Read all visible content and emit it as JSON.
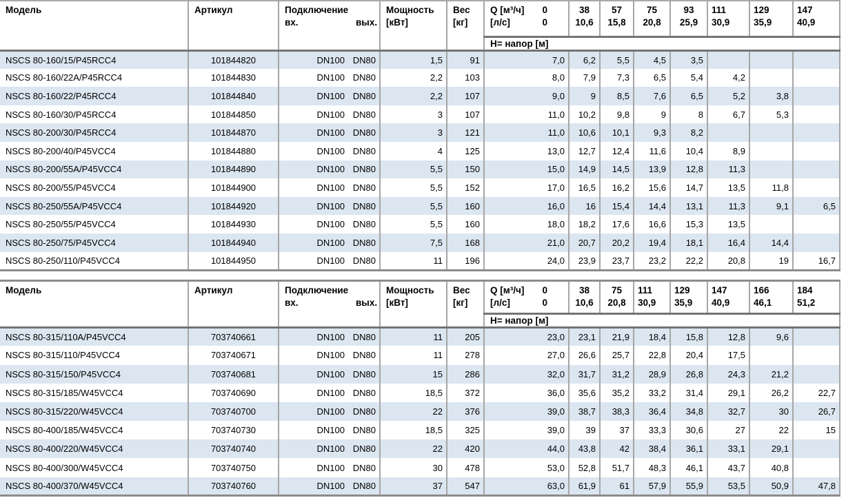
{
  "labels": {
    "model": "Модель",
    "article": "Артикул",
    "connection": "Подключение",
    "conn_in": "вх.",
    "conn_out": "вых.",
    "power": "Мощность",
    "power_unit": "[кВт]",
    "weight": "Вес",
    "weight_unit": "[кг]",
    "q_unit_m3h": "Q [м³/ч]",
    "q_unit_ls": "[л/с]",
    "q_zero": "0",
    "head_row": "H= напор [м]"
  },
  "colors": {
    "row_band": "#dce6f1",
    "grid_border": "#a6a6a6",
    "thick_border": "#737373"
  },
  "tables": [
    {
      "q_m3h": [
        "38",
        "57",
        "75",
        "93",
        "111",
        "129",
        "147"
      ],
      "q_ls": [
        "10,6",
        "15,8",
        "20,8",
        "25,9",
        "30,9",
        "35,9",
        "40,9"
      ],
      "rows": [
        {
          "model": "NSCS 80-160/15/P45RCC4",
          "article": "101844820",
          "dn_in": "DN100",
          "dn_out": "DN80",
          "power": "1,5",
          "weight": "91",
          "h": [
            "7,0",
            "6,2",
            "5,5",
            "4,5",
            "3,5",
            "",
            "",
            ""
          ]
        },
        {
          "model": "NSCS 80-160/22A/P45RCC4",
          "article": "101844830",
          "dn_in": "DN100",
          "dn_out": "DN80",
          "power": "2,2",
          "weight": "103",
          "h": [
            "8,0",
            "7,9",
            "7,3",
            "6,5",
            "5,4",
            "4,2",
            "",
            ""
          ]
        },
        {
          "model": "NSCS 80-160/22/P45RCC4",
          "article": "101844840",
          "dn_in": "DN100",
          "dn_out": "DN80",
          "power": "2,2",
          "weight": "107",
          "h": [
            "9,0",
            "9",
            "8,5",
            "7,6",
            "6,5",
            "5,2",
            "3,8",
            ""
          ]
        },
        {
          "model": "NSCS 80-160/30/P45RCC4",
          "article": "101844850",
          "dn_in": "DN100",
          "dn_out": "DN80",
          "power": "3",
          "weight": "107",
          "h": [
            "11,0",
            "10,2",
            "9,8",
            "9",
            "8",
            "6,7",
            "5,3",
            ""
          ]
        },
        {
          "model": "NSCS 80-200/30/P45RCC4",
          "article": "101844870",
          "dn_in": "DN100",
          "dn_out": "DN80",
          "power": "3",
          "weight": "121",
          "h": [
            "11,0",
            "10,6",
            "10,1",
            "9,3",
            "8,2",
            "",
            "",
            ""
          ]
        },
        {
          "model": "NSCS 80-200/40/P45VCC4",
          "article": "101844880",
          "dn_in": "DN100",
          "dn_out": "DN80",
          "power": "4",
          "weight": "125",
          "h": [
            "13,0",
            "12,7",
            "12,4",
            "11,6",
            "10,4",
            "8,9",
            "",
            ""
          ]
        },
        {
          "model": "NSCS 80-200/55A/P45VCC4",
          "article": "101844890",
          "dn_in": "DN100",
          "dn_out": "DN80",
          "power": "5,5",
          "weight": "150",
          "h": [
            "15,0",
            "14,9",
            "14,5",
            "13,9",
            "12,8",
            "11,3",
            "",
            ""
          ]
        },
        {
          "model": "NSCS 80-200/55/P45VCC4",
          "article": "101844900",
          "dn_in": "DN100",
          "dn_out": "DN80",
          "power": "5,5",
          "weight": "152",
          "h": [
            "17,0",
            "16,5",
            "16,2",
            "15,6",
            "14,7",
            "13,5",
            "11,8",
            ""
          ]
        },
        {
          "model": "NSCS 80-250/55A/P45VCC4",
          "article": "101844920",
          "dn_in": "DN100",
          "dn_out": "DN80",
          "power": "5,5",
          "weight": "160",
          "h": [
            "16,0",
            "16",
            "15,4",
            "14,4",
            "13,1",
            "11,3",
            "9,1",
            "6,5"
          ]
        },
        {
          "model": "NSCS 80-250/55/P45VCC4",
          "article": "101844930",
          "dn_in": "DN100",
          "dn_out": "DN80",
          "power": "5,5",
          "weight": "160",
          "h": [
            "18,0",
            "18,2",
            "17,6",
            "16,6",
            "15,3",
            "13,5",
            "",
            ""
          ]
        },
        {
          "model": "NSCS 80-250/75/P45VCC4",
          "article": "101844940",
          "dn_in": "DN100",
          "dn_out": "DN80",
          "power": "7,5",
          "weight": "168",
          "h": [
            "21,0",
            "20,7",
            "20,2",
            "19,4",
            "18,1",
            "16,4",
            "14,4",
            ""
          ]
        },
        {
          "model": "NSCS 80-250/110/P45VCC4",
          "article": "101844950",
          "dn_in": "DN100",
          "dn_out": "DN80",
          "power": "11",
          "weight": "196",
          "h": [
            "24,0",
            "23,9",
            "23,7",
            "23,2",
            "22,2",
            "20,8",
            "19",
            "16,7"
          ]
        }
      ]
    },
    {
      "q_m3h": [
        "38",
        "75",
        "111",
        "129",
        "147",
        "166",
        "184"
      ],
      "q_ls": [
        "10,6",
        "20,8",
        "30,9",
        "35,9",
        "40,9",
        "46,1",
        "51,2"
      ],
      "rows": [
        {
          "model": "NSCS 80-315/110A/P45VCC4",
          "article": "703740661",
          "dn_in": "DN100",
          "dn_out": "DN80",
          "power": "11",
          "weight": "205",
          "h": [
            "23,0",
            "23,1",
            "21,9",
            "18,4",
            "15,8",
            "12,8",
            "9,6",
            ""
          ]
        },
        {
          "model": "NSCS 80-315/110/P45VCC4",
          "article": "703740671",
          "dn_in": "DN100",
          "dn_out": "DN80",
          "power": "11",
          "weight": "278",
          "h": [
            "27,0",
            "26,6",
            "25,7",
            "22,8",
            "20,4",
            "17,5",
            "",
            ""
          ]
        },
        {
          "model": "NSCS 80-315/150/P45VCC4",
          "article": "703740681",
          "dn_in": "DN100",
          "dn_out": "DN80",
          "power": "15",
          "weight": "286",
          "h": [
            "32,0",
            "31,7",
            "31,2",
            "28,9",
            "26,8",
            "24,3",
            "21,2",
            ""
          ]
        },
        {
          "model": "NSCS 80-315/185/W45VCC4",
          "article": "703740690",
          "dn_in": "DN100",
          "dn_out": "DN80",
          "power": "18,5",
          "weight": "372",
          "h": [
            "36,0",
            "35,6",
            "35,2",
            "33,2",
            "31,4",
            "29,1",
            "26,2",
            "22,7"
          ]
        },
        {
          "model": "NSCS 80-315/220/W45VCC4",
          "article": "703740700",
          "dn_in": "DN100",
          "dn_out": "DN80",
          "power": "22",
          "weight": "376",
          "h": [
            "39,0",
            "38,7",
            "38,3",
            "36,4",
            "34,8",
            "32,7",
            "30",
            "26,7"
          ]
        },
        {
          "model": "NSCS 80-400/185/W45VCC4",
          "article": "703740730",
          "dn_in": "DN100",
          "dn_out": "DN80",
          "power": "18,5",
          "weight": "325",
          "h": [
            "39,0",
            "39",
            "37",
            "33,3",
            "30,6",
            "27",
            "22",
            "15"
          ]
        },
        {
          "model": "NSCS 80-400/220/W45VCC4",
          "article": "703740740",
          "dn_in": "DN100",
          "dn_out": "DN80",
          "power": "22",
          "weight": "420",
          "h": [
            "44,0",
            "43,8",
            "42",
            "38,4",
            "36,1",
            "33,1",
            "29,1",
            ""
          ]
        },
        {
          "model": "NSCS 80-400/300/W45VCC4",
          "article": "703740750",
          "dn_in": "DN100",
          "dn_out": "DN80",
          "power": "30",
          "weight": "478",
          "h": [
            "53,0",
            "52,8",
            "51,7",
            "48,3",
            "46,1",
            "43,7",
            "40,8",
            ""
          ]
        },
        {
          "model": "NSCS 80-400/370/W45VCC4",
          "article": "703740760",
          "dn_in": "DN100",
          "dn_out": "DN80",
          "power": "37",
          "weight": "547",
          "h": [
            "63,0",
            "61,9",
            "61",
            "57,9",
            "55,9",
            "53,5",
            "50,9",
            "47,8"
          ]
        }
      ]
    }
  ]
}
